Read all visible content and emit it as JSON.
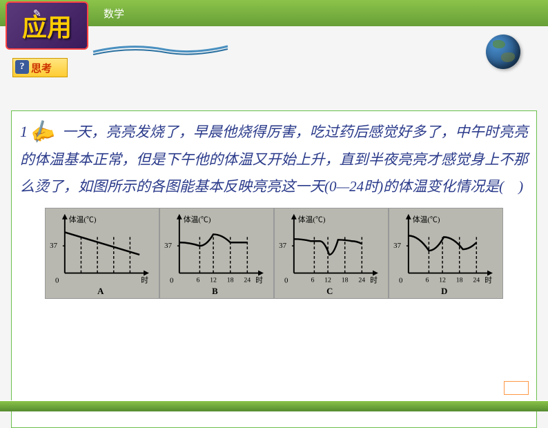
{
  "header": {
    "badge_text": "应用",
    "subject": "数学",
    "think_label": "思考"
  },
  "question": {
    "number": "1",
    "text": "一天，亮亮发烧了，早晨他烧得厉害，吃过药后感觉好多了，中午时亮亮的体温基本正常，但是下午他的体温又开始上升，直到半夜亮亮才感觉身上不那么烫了，如图所示的各图能基本反映亮亮这一天(0—24时)的体温变化情况是(　)"
  },
  "charts": {
    "y_label": "体温(℃)",
    "x_label": "时",
    "y_tick_label": "37",
    "options": [
      {
        "label": "A",
        "type": "line",
        "x_ticks": [],
        "curve": [
          [
            20,
            35
          ],
          [
            130,
            68
          ]
        ],
        "dashes": [
          44,
          68,
          92,
          116
        ]
      },
      {
        "label": "B",
        "type": "line",
        "x_ticks": [
          "6",
          "12",
          "18",
          "24"
        ],
        "curve": [
          [
            20,
            50
          ],
          [
            50,
            55
          ],
          [
            70,
            38
          ],
          [
            95,
            50
          ],
          [
            120,
            50
          ]
        ],
        "dashes": [
          50,
          70,
          95,
          120
        ]
      },
      {
        "label": "C",
        "type": "line",
        "x_ticks": [
          "6",
          "12",
          "18",
          "24"
        ],
        "curve": [
          [
            20,
            45
          ],
          [
            45,
            48
          ],
          [
            58,
            48
          ],
          [
            72,
            68
          ],
          [
            85,
            46
          ],
          [
            105,
            48
          ],
          [
            120,
            52
          ]
        ],
        "dashes": [
          50,
          70,
          95,
          120
        ]
      },
      {
        "label": "D",
        "type": "line",
        "x_ticks": [
          "6",
          "12",
          "18",
          "24"
        ],
        "curve": [
          [
            20,
            40
          ],
          [
            50,
            62
          ],
          [
            72,
            42
          ],
          [
            100,
            60
          ],
          [
            120,
            50
          ]
        ],
        "dashes": [
          50,
          70,
          95,
          120
        ]
      }
    ],
    "axis_color": "#000000",
    "curve_color": "#000000",
    "dash_color": "#000000",
    "background": "#b8b8b0",
    "label_fontsize": 11
  },
  "colors": {
    "header_green_top": "#8bc34a",
    "header_green_bottom": "#689f38",
    "badge_bg": "#5a3a7a",
    "badge_text": "#ffcc00",
    "question_text": "#2a3a8a",
    "content_border": "#6abf4b"
  }
}
